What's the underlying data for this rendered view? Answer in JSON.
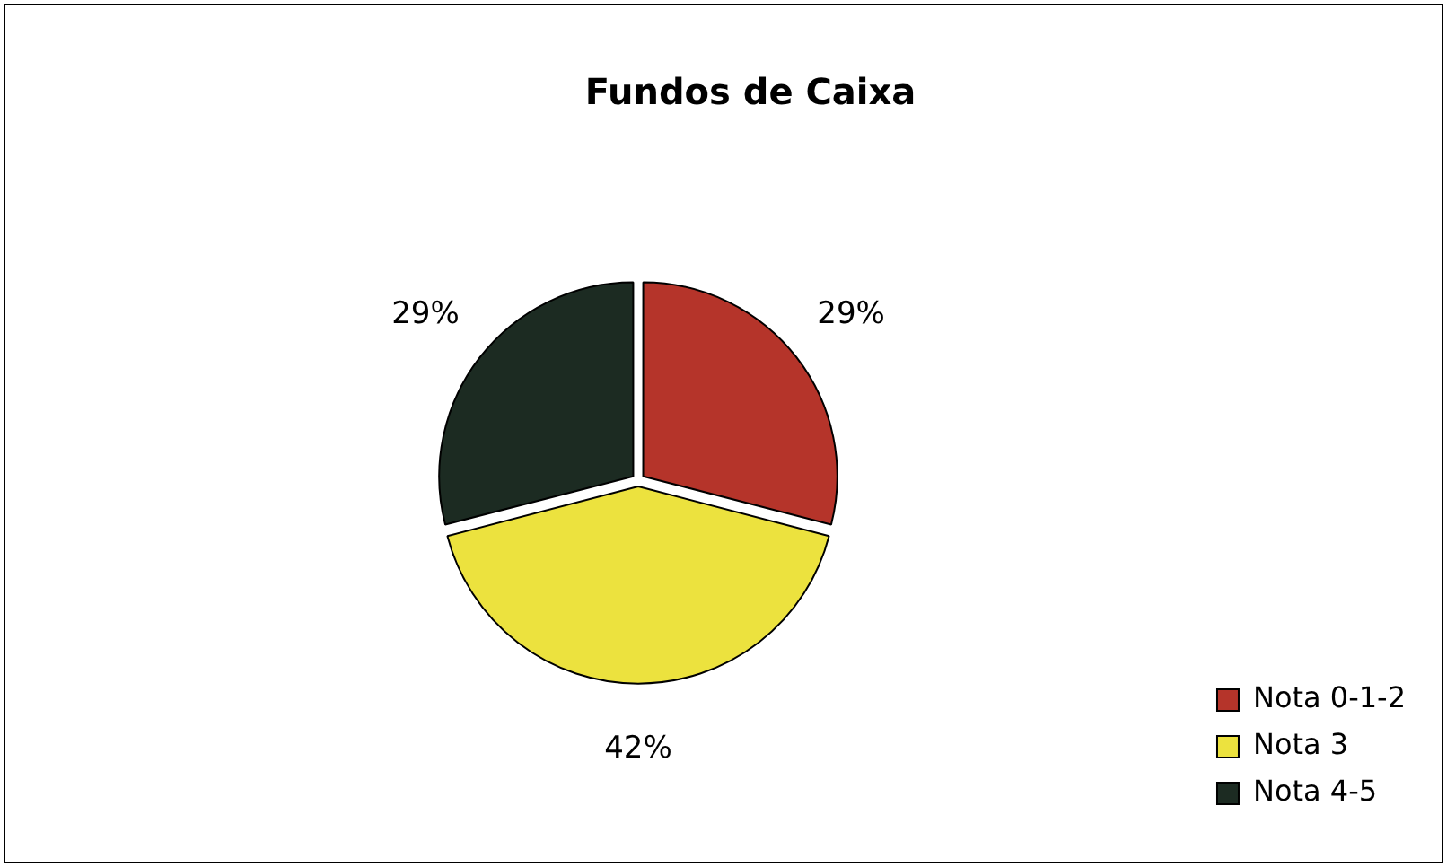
{
  "chart_data": {
    "type": "pie",
    "title": "Fundos de Caixa",
    "categories": [
      "Nota 0-1-2",
      "Nota 3",
      "Nota 4-5"
    ],
    "values": [
      29,
      42,
      29
    ],
    "value_labels": [
      "29%",
      "42%",
      "29%"
    ],
    "colors": [
      "#b5342a",
      "#ece23e",
      "#1c2b22"
    ],
    "legend": "bottom right"
  }
}
